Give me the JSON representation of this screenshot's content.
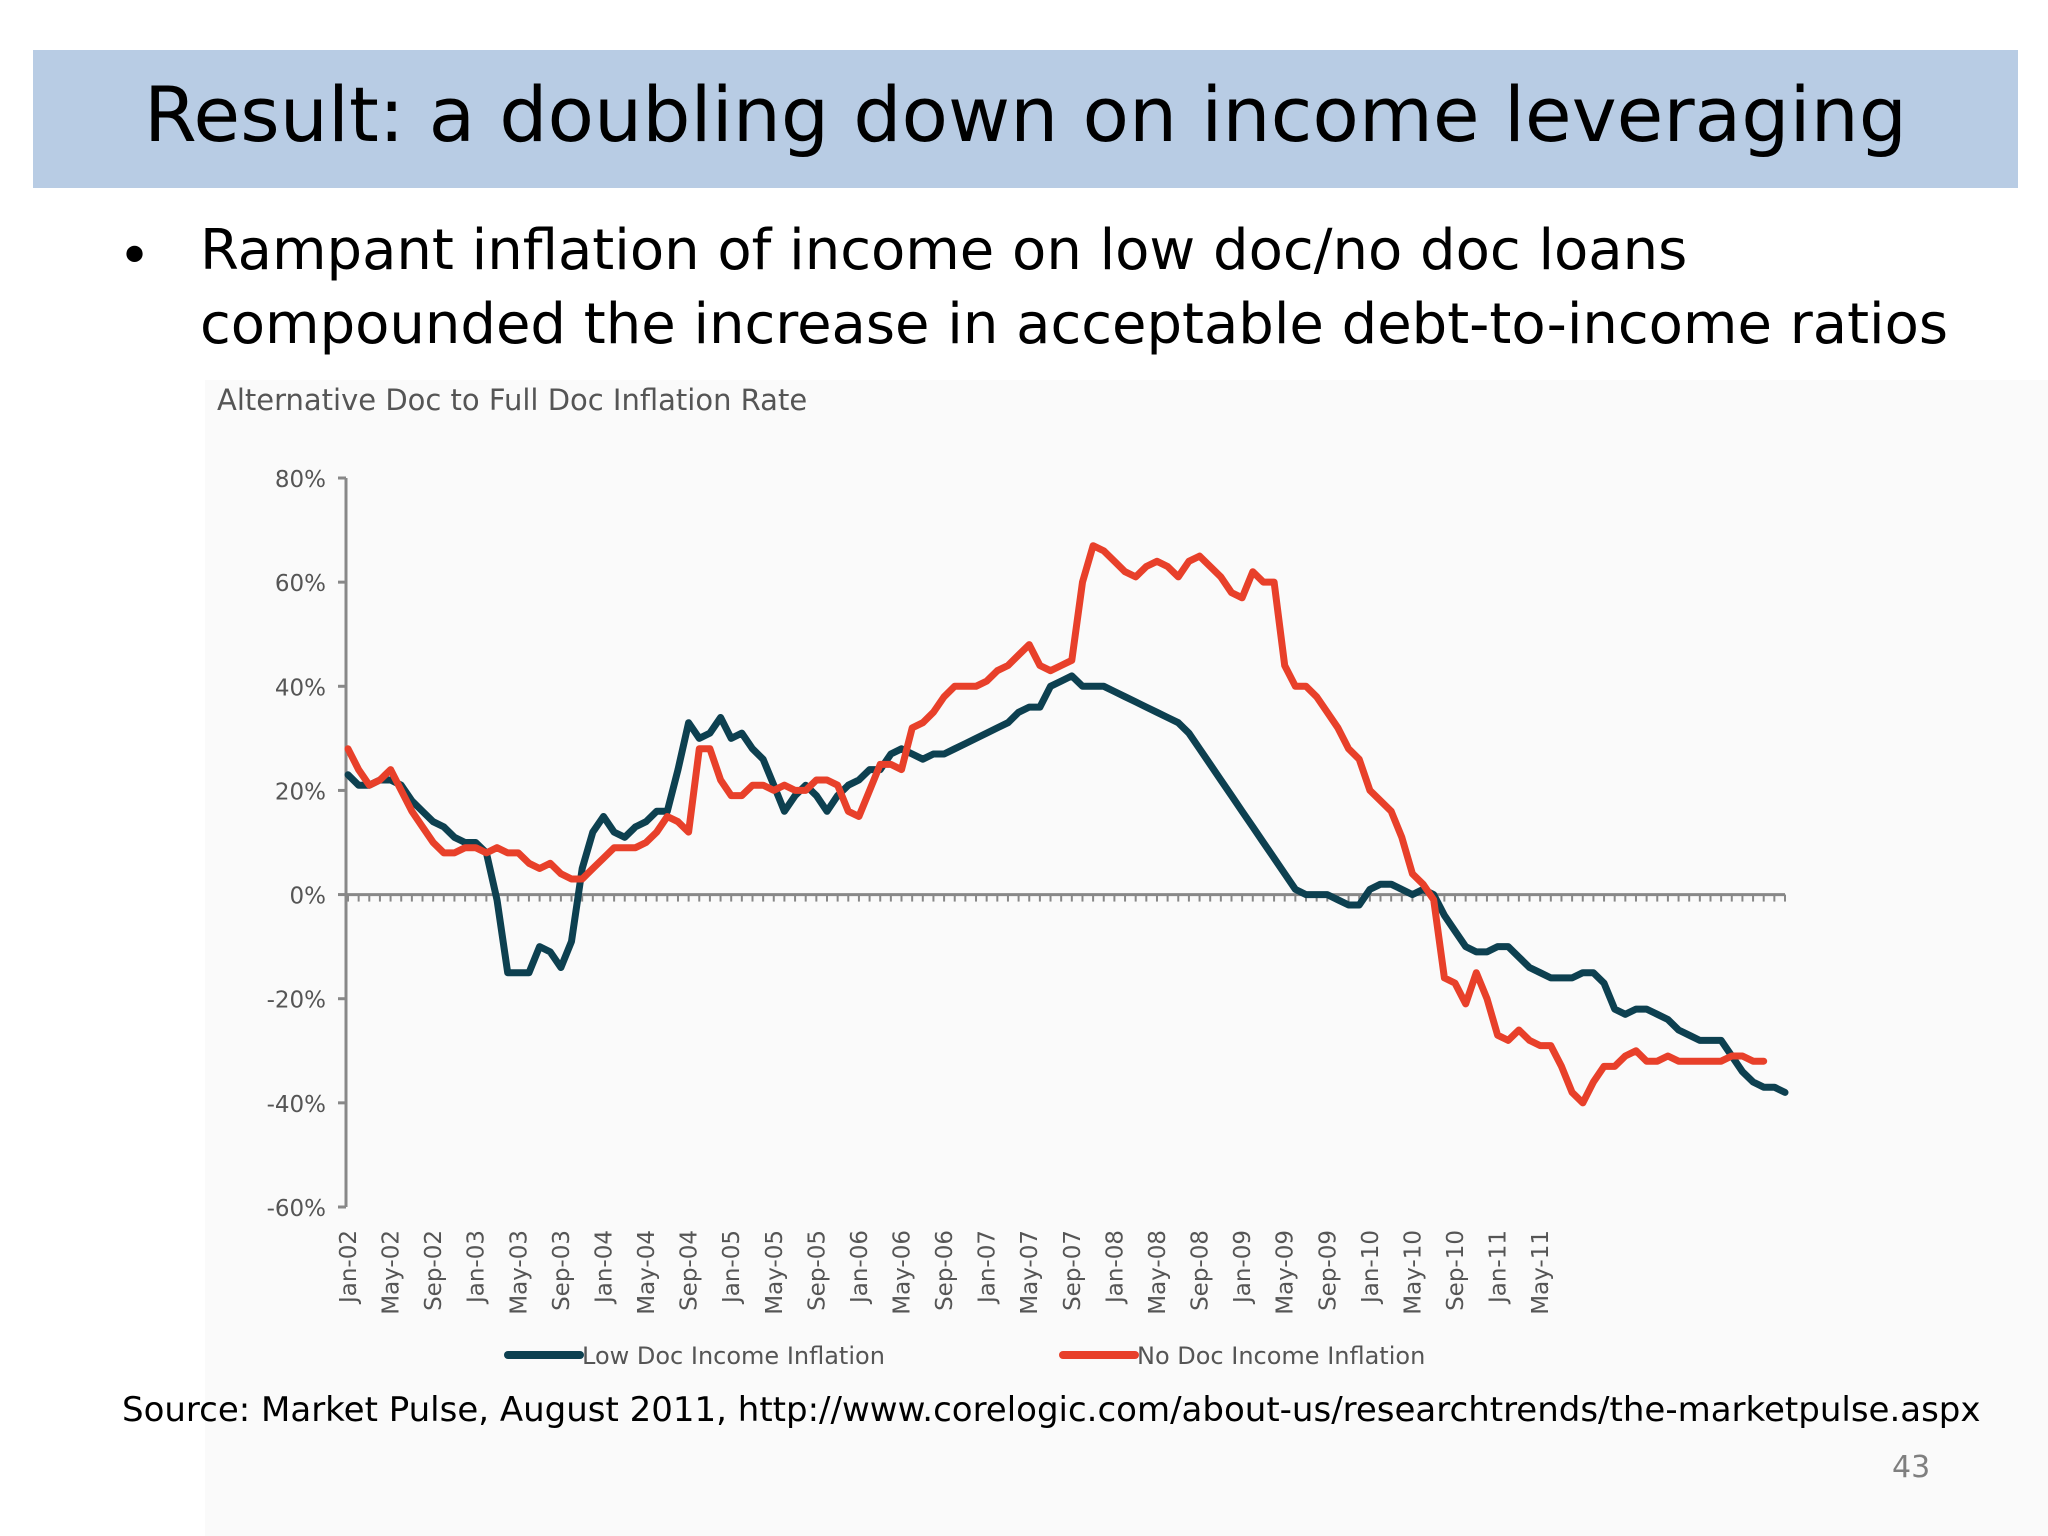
{
  "slide": {
    "title": "Result: a doubling down on income leveraging",
    "bullet_symbol": "•",
    "bullet_line1": "Rampant inflation of income on low doc/no doc loans",
    "bullet_line2": "compounded the increase in acceptable debt-to-income ratios",
    "source": "Source: Market Pulse, August 2011, http://www.corelogic.com/about-us/researchtrends/the-marketpulse.aspx",
    "page_number": "43"
  },
  "chart_data": {
    "type": "line",
    "title": "Alternative Doc to Full Doc Inflation Rate",
    "xlabel": "",
    "ylabel": "",
    "ylim": [
      -60,
      80
    ],
    "y_ticks": [
      "80%",
      "60%",
      "40%",
      "20%",
      "0%",
      "-20%",
      "-40%",
      "-60%"
    ],
    "y_tick_values": [
      80,
      60,
      40,
      20,
      0,
      -20,
      -40,
      -60
    ],
    "x_tick_labels": [
      "Jan-02",
      "May-02",
      "Sep-02",
      "Jan-03",
      "May-03",
      "Sep-03",
      "Jan-04",
      "May-04",
      "Sep-04",
      "Jan-05",
      "May-05",
      "Sep-05",
      "Jan-06",
      "May-06",
      "Sep-06",
      "Jan-07",
      "May-07",
      "Sep-07",
      "Jan-08",
      "May-08",
      "Sep-08",
      "Jan-09",
      "May-09",
      "Sep-09",
      "Jan-10",
      "May-10",
      "Sep-10",
      "Jan-11",
      "May-11"
    ],
    "x_start": "Jan-02",
    "x_frequency": "monthly",
    "grid": false,
    "legend_position": "bottom",
    "series": [
      {
        "name": "Low Doc Income Inflation",
        "color": "#0d4050",
        "values": [
          23,
          21,
          21,
          22,
          22,
          21,
          18,
          16,
          14,
          13,
          11,
          10,
          10,
          8,
          -1,
          -15,
          -15,
          -15,
          -10,
          -11,
          -14,
          -9,
          5,
          12,
          15,
          12,
          11,
          13,
          14,
          16,
          16,
          24,
          33,
          30,
          31,
          34,
          30,
          31,
          28,
          26,
          21,
          16,
          19,
          21,
          19,
          16,
          19,
          21,
          22,
          24,
          24,
          27,
          28,
          27,
          26,
          27,
          27,
          28,
          29,
          30,
          31,
          32,
          33,
          35,
          36,
          36,
          40,
          41,
          42,
          40,
          40,
          40,
          39,
          38,
          37,
          36,
          35,
          34,
          33,
          31,
          28,
          25,
          22,
          19,
          16,
          13,
          10,
          7,
          4,
          1,
          0,
          0,
          0,
          -1,
          -2,
          -2,
          1,
          2,
          2,
          1,
          0,
          1,
          0,
          -4,
          -7,
          -10,
          -11,
          -11,
          -10,
          -10,
          -12,
          -14,
          -15,
          -16,
          -16,
          -16,
          -15,
          -15,
          -17,
          -22,
          -23,
          -22,
          -22,
          -23,
          -24,
          -26,
          -27,
          -28,
          -28,
          -28,
          -31,
          -34,
          -36,
          -37,
          -37,
          -38
        ]
      },
      {
        "name": "No Doc Income Inflation",
        "color": "#e8402a",
        "values": [
          28,
          24,
          21,
          22,
          24,
          20,
          16,
          13,
          10,
          8,
          8,
          9,
          9,
          8,
          9,
          8,
          8,
          6,
          5,
          6,
          4,
          3,
          3,
          5,
          7,
          9,
          9,
          9,
          10,
          12,
          15,
          14,
          12,
          28,
          28,
          22,
          19,
          19,
          21,
          21,
          20,
          21,
          20,
          20,
          22,
          22,
          21,
          16,
          15,
          20,
          25,
          25,
          24,
          32,
          33,
          35,
          38,
          40,
          40,
          40,
          41,
          43,
          44,
          46,
          48,
          44,
          43,
          44,
          45,
          60,
          67,
          66,
          64,
          62,
          61,
          63,
          64,
          63,
          61,
          64,
          65,
          63,
          61,
          58,
          57,
          62,
          60,
          60,
          44,
          40,
          40,
          38,
          35,
          32,
          28,
          26,
          20,
          18,
          16,
          11,
          4,
          2,
          -1,
          -16,
          -17,
          -21,
          -15,
          -20,
          -27,
          -28,
          -26,
          -28,
          -29,
          -29,
          -33,
          -38,
          -40,
          -36,
          -33,
          -33,
          -31,
          -30,
          -32,
          -32,
          -31,
          -32,
          -32,
          -32,
          -32,
          -32,
          -31,
          -31,
          -32,
          -32
        ]
      }
    ]
  }
}
